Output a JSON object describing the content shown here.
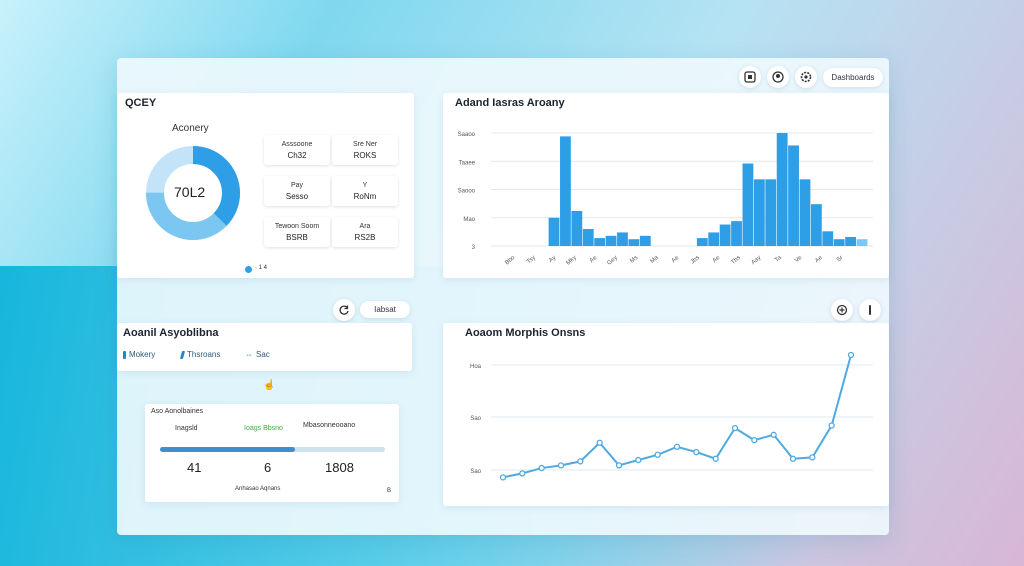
{
  "toolbar": {
    "button_label": "Dashboards"
  },
  "card1": {
    "title": "QCEY",
    "subtitle": "Aconery",
    "donut_value": "70L2",
    "donut_fraction": 0.62,
    "tiles": [
      {
        "label": "Asssoone",
        "value": "Ch32"
      },
      {
        "label": "Sre Ner",
        "value": "ROKS"
      },
      {
        "label": "Pay",
        "value": "Sesso"
      },
      {
        "label": "Y",
        "value": "RoNm"
      },
      {
        "label": "Tewoon Soom",
        "value": "BSRB"
      },
      {
        "label": "Ara",
        "value": "RS2B"
      }
    ],
    "footer": "· 1 4"
  },
  "card2": {
    "title": "Adand Iasras Aroany"
  },
  "section3": {
    "button_label": "Iabsat",
    "title": "Aoanil Asyoblibna",
    "items": [
      "Mokery",
      "Thsroans",
      "Sac"
    ]
  },
  "card4": {
    "header": "Aso Aonolbaines",
    "col1": "Inagsld",
    "col2": "Ioags Bbsno",
    "col3": "Mbasonneooano",
    "progress_fraction": 0.6,
    "values": [
      "41",
      "6",
      "1808"
    ],
    "footer": "Anhasao Aqnans",
    "footer_right": "B"
  },
  "card5": {
    "title": "Aoaom Morphis Onsns"
  },
  "colors": {
    "accent": "#2e9ee6",
    "donut_light": "#7cc6f2",
    "donut_pale": "#c3e3f8",
    "line": "#4ea9e2",
    "green": "#3cb043",
    "red": "#d9534f"
  },
  "chart_data": [
    {
      "type": "bar",
      "title": "Adand Iasras Aroany",
      "ylabels": [
        "Saaoo",
        "Taaee",
        "Saooo",
        "Mao",
        "3"
      ],
      "xlabels": [
        "Bbo",
        "Tsy",
        "Ay",
        "Mky",
        "Ae",
        "Gey",
        "Ms",
        "Ma",
        "Ae",
        "Jbs",
        "Ae",
        "Tbs",
        "Aay",
        "Ta",
        "Ve",
        "Ae",
        "Sr"
      ],
      "ylim": [
        0,
        100
      ],
      "values": [
        0,
        0,
        0,
        0,
        25,
        97,
        31,
        15,
        7,
        9,
        12,
        6,
        9,
        0,
        0,
        0,
        0,
        7,
        12,
        19,
        22,
        73,
        59,
        59,
        100,
        89,
        59,
        37,
        13,
        6,
        8,
        6
      ]
    },
    {
      "type": "line",
      "title": "Aoaom Morphis Onsns",
      "ylabels": [
        "Hoa",
        "Sao",
        "Sao"
      ],
      "ylim": [
        0,
        100
      ],
      "values": [
        8,
        11,
        15,
        17,
        20,
        34,
        17,
        21,
        25,
        31,
        27,
        22,
        45,
        36,
        40,
        22,
        23,
        47,
        100
      ]
    }
  ]
}
